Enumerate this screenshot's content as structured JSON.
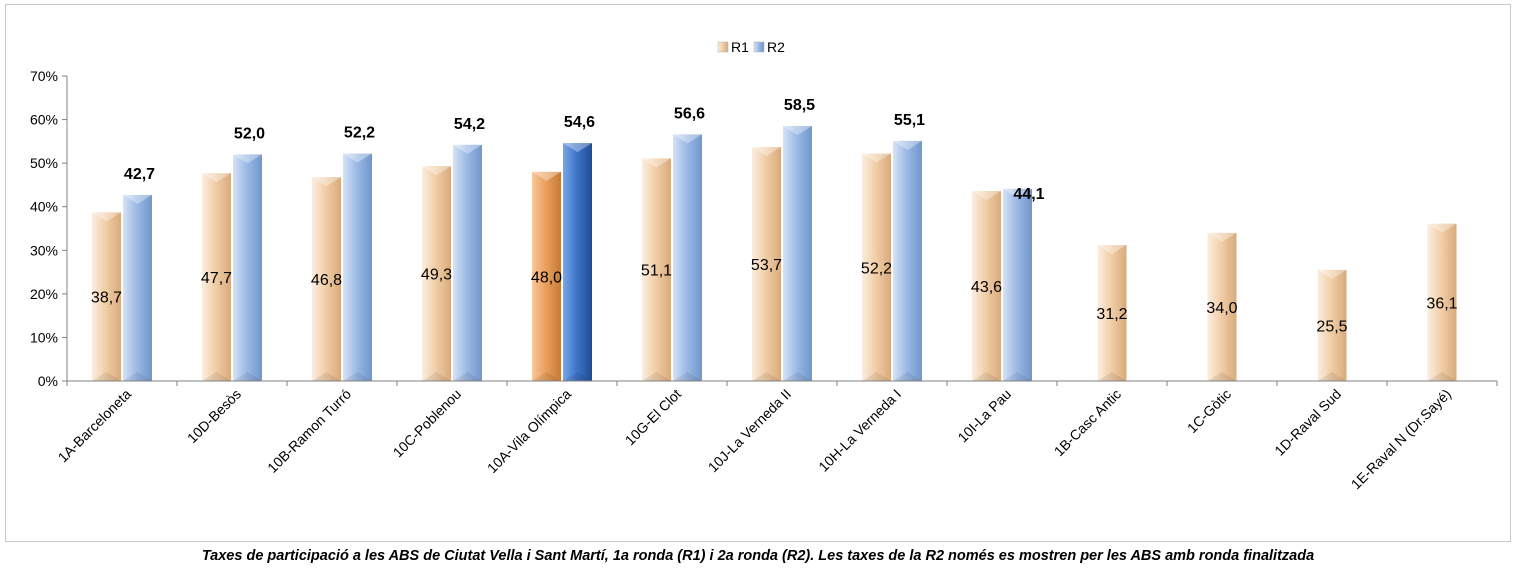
{
  "chart_data": {
    "type": "bar",
    "categories": [
      "1A-Barceloneta",
      "10D-Besòs",
      "10B-Ramon Turró",
      "10C-Poblenou",
      "10A-Vila Olímpica",
      "10G-El Clot",
      "10J-La Verneda II",
      "10H-La Verneda I",
      "10I-La Pau",
      "1B-Casc Antic",
      "1C-Gòtic",
      "1D-Raval Sud",
      "1E-Raval N (Dr.Sayé)"
    ],
    "series": [
      {
        "name": "R1",
        "values": [
          38.7,
          47.7,
          46.8,
          49.3,
          48.0,
          51.1,
          53.7,
          52.2,
          43.6,
          31.2,
          34.0,
          25.5,
          36.1
        ]
      },
      {
        "name": "R2",
        "values": [
          42.7,
          52.0,
          52.2,
          54.2,
          54.6,
          56.6,
          58.5,
          55.1,
          44.1,
          null,
          null,
          null,
          null
        ]
      }
    ],
    "data_labels": {
      "R1": [
        "38,7",
        "47,7",
        "46,8",
        "49,3",
        "48,0",
        "51,1",
        "53,7",
        "52,2",
        "43,6",
        "31,2",
        "34,0",
        "25,5",
        "36,1"
      ],
      "R2": [
        "42,7",
        "52,0",
        "52,2",
        "54,2",
        "54,6",
        "56,6",
        "58,5",
        "55,1",
        "44,1",
        "",
        "",
        "",
        ""
      ]
    },
    "y_ticks": [
      "0%",
      "10%",
      "20%",
      "30%",
      "40%",
      "50%",
      "60%",
      "70%"
    ],
    "ylim": [
      0,
      70
    ],
    "highlight_category": "10A-Vila Olímpica",
    "legend": {
      "position": "top-center",
      "entries": [
        "R1",
        "R2"
      ]
    },
    "grid": false,
    "title": "",
    "xlabel": "",
    "ylabel": "",
    "colors": {
      "R1": "#f2cfa8",
      "R1_highlight": "#eba15f",
      "R2": "#9dbbe6",
      "R2_highlight": "#3e76c9",
      "axis": "#808080"
    }
  },
  "caption": "Taxes de participació a les ABS de Ciutat Vella i Sant Martí, 1a ronda (R1) i 2a ronda (R2). Les taxes de la R2 només es mostren per les ABS amb ronda finalitzada"
}
